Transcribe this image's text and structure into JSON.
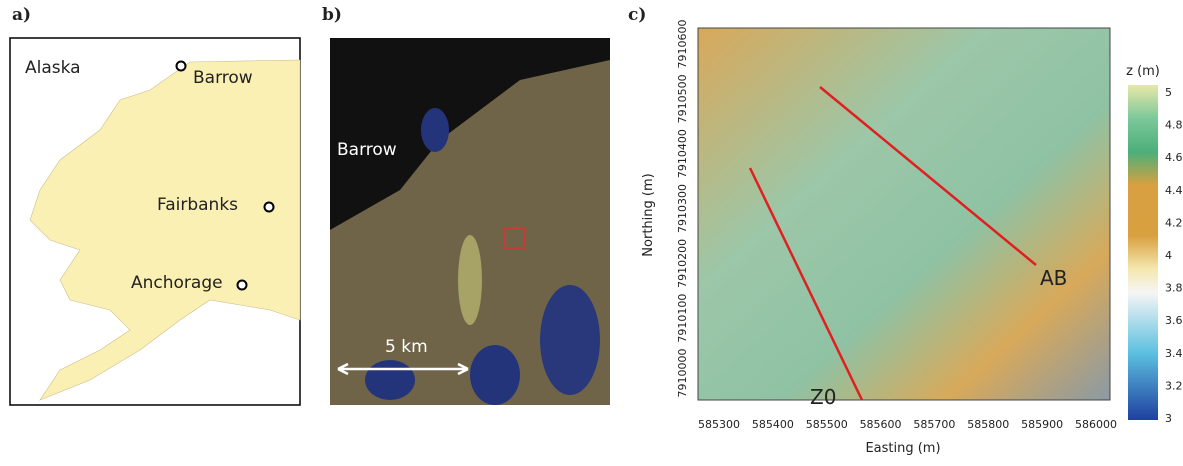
{
  "panel_a": {
    "label": "a)",
    "places": [
      "Alaska",
      "Barrow",
      "Fairbanks",
      "Anchorage"
    ]
  },
  "panel_b": {
    "label": "b)",
    "place": "Barrow",
    "scale": "5 km"
  },
  "panel_c": {
    "label": "c)",
    "x_label": "Easting (m)",
    "y_label": "Northing (m)",
    "x_ticks": [
      585300,
      585400,
      585500,
      585600,
      585700,
      585800,
      585900,
      586000
    ],
    "y_ticks": [
      7910600,
      7910500,
      7910400,
      7910300,
      7910200,
      7910100,
      7910000
    ],
    "colorbar_title": "z (m)",
    "colorbar_ticks": [
      5,
      4.8,
      4.6,
      4.4,
      4.2,
      4,
      3.8,
      3.6,
      3.4,
      3.2,
      3
    ],
    "transects": [
      "AB",
      "Z0"
    ]
  }
}
